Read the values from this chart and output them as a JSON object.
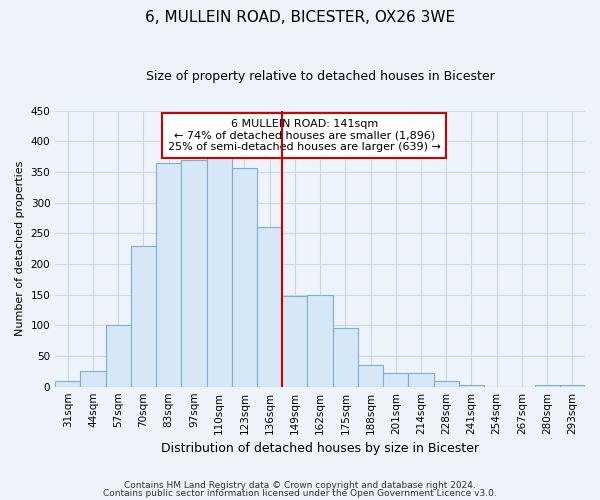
{
  "title": "6, MULLEIN ROAD, BICESTER, OX26 3WE",
  "subtitle": "Size of property relative to detached houses in Bicester",
  "xlabel": "Distribution of detached houses by size in Bicester",
  "ylabel": "Number of detached properties",
  "footnote1": "Contains HM Land Registry data © Crown copyright and database right 2024.",
  "footnote2": "Contains public sector information licensed under the Open Government Licence v3.0.",
  "bar_labels": [
    "31sqm",
    "44sqm",
    "57sqm",
    "70sqm",
    "83sqm",
    "97sqm",
    "110sqm",
    "123sqm",
    "136sqm",
    "149sqm",
    "162sqm",
    "175sqm",
    "188sqm",
    "201sqm",
    "214sqm",
    "228sqm",
    "241sqm",
    "254sqm",
    "267sqm",
    "280sqm",
    "293sqm"
  ],
  "bar_values": [
    10,
    25,
    100,
    230,
    365,
    370,
    375,
    357,
    260,
    147,
    150,
    95,
    35,
    22,
    22,
    10,
    2,
    0,
    0,
    2,
    2
  ],
  "bar_color": "#d6e8f7",
  "bar_edge_color": "#7ab0d4",
  "vline_pos": 8.5,
  "vline_color": "#cc0000",
  "annotation_title": "6 MULLEIN ROAD: 141sqm",
  "annotation_line1": "← 74% of detached houses are smaller (1,896)",
  "annotation_line2": "25% of semi-detached houses are larger (639) →",
  "annotation_box_facecolor": "#ffffff",
  "annotation_box_edgecolor": "#cc0000",
  "ylim": [
    0,
    450
  ],
  "yticks": [
    0,
    50,
    100,
    150,
    200,
    250,
    300,
    350,
    400,
    450
  ],
  "background_color": "#eef3f9",
  "grid_color": "#c8d8e8",
  "title_fontsize": 11,
  "subtitle_fontsize": 9,
  "ylabel_fontsize": 8,
  "xlabel_fontsize": 9,
  "tick_fontsize": 7.5,
  "footnote_fontsize": 6.5
}
